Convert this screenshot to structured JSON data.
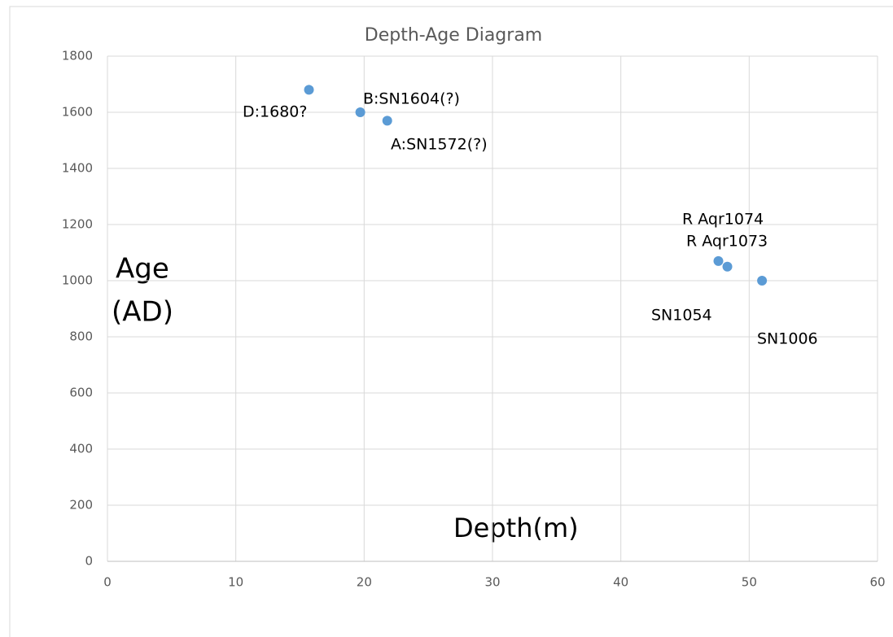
{
  "chart_data": {
    "type": "scatter",
    "title": "Depth-Age Diagram",
    "xlabel": "Depth(m)",
    "ylabel_lines": [
      "Age",
      "(AD)"
    ],
    "series": [
      {
        "color": "#5b9bd5",
        "x": [
          15.7,
          19.7,
          21.8,
          47.6,
          48.3,
          51.0
        ],
        "values": [
          1680,
          1600,
          1570,
          1070,
          1050,
          1000
        ]
      }
    ],
    "annotations": [
      "D:1680?",
      "B:SN1604(?)",
      "A:SN1572(?)",
      "R Aqr1074",
      "R Aqr1073",
      "SN1054",
      "SN1006"
    ],
    "xlim": [
      0,
      60
    ],
    "xticks": [
      0,
      10,
      20,
      30,
      40,
      50,
      60
    ],
    "ylim": [
      0,
      1800
    ],
    "yticks": [
      0,
      200,
      400,
      600,
      800,
      1000,
      1200,
      1400,
      1600,
      1800
    ],
    "grid": true
  }
}
